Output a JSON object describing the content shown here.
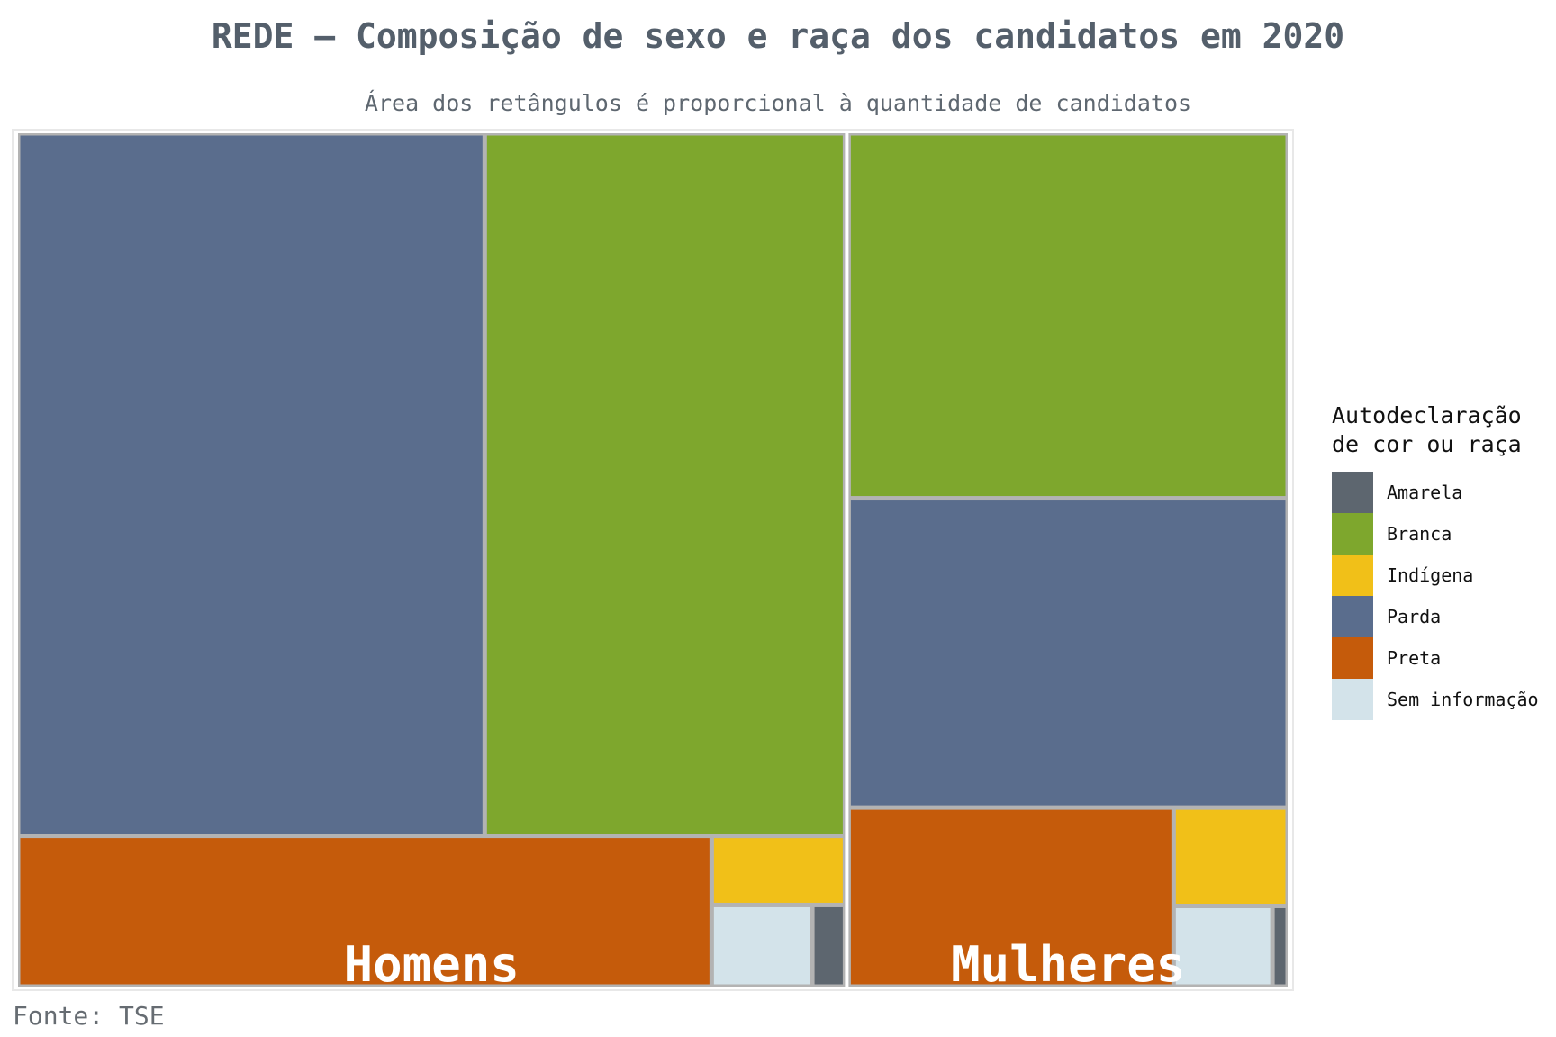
{
  "chart_data": {
    "type": "treemap",
    "title": "REDE – Composição de sexo e raça dos candidatos em 2020",
    "subtitle": "Área dos retângulos é proporcional à quantidade de candidatos",
    "caption": "Fonte: TSE",
    "legend": {
      "title_lines": [
        "Autodeclaração",
        "de cor ou raça"
      ],
      "placement": "right",
      "items": [
        {
          "label": "Amarela",
          "color": "#5d666f"
        },
        {
          "label": "Branca",
          "color": "#7ea72d"
        },
        {
          "label": "Indígena",
          "color": "#f1c018"
        },
        {
          "label": "Parda",
          "color": "#5a6d8d"
        },
        {
          "label": "Preta",
          "color": "#c55b0b"
        },
        {
          "label": "Sem informação",
          "color": "#d3e3ea"
        }
      ]
    },
    "groups": [
      {
        "label": "Homens",
        "values": [
          {
            "category": "Parda",
            "value": 3200
          },
          {
            "category": "Branca",
            "value": 2470
          },
          {
            "category": "Preta",
            "value": 1020
          },
          {
            "category": "Sem informação",
            "value": 80
          },
          {
            "category": "Indígena",
            "value": 90
          },
          {
            "category": "Amarela",
            "value": 26
          }
        ]
      },
      {
        "label": "Mulheres",
        "values": [
          {
            "category": "Branca",
            "value": 1570
          },
          {
            "category": "Parda",
            "value": 1330
          },
          {
            "category": "Preta",
            "value": 570
          },
          {
            "category": "Indígena",
            "value": 110
          },
          {
            "category": "Sem informação",
            "value": 78
          },
          {
            "category": "Amarela",
            "value": 12
          }
        ]
      }
    ]
  }
}
